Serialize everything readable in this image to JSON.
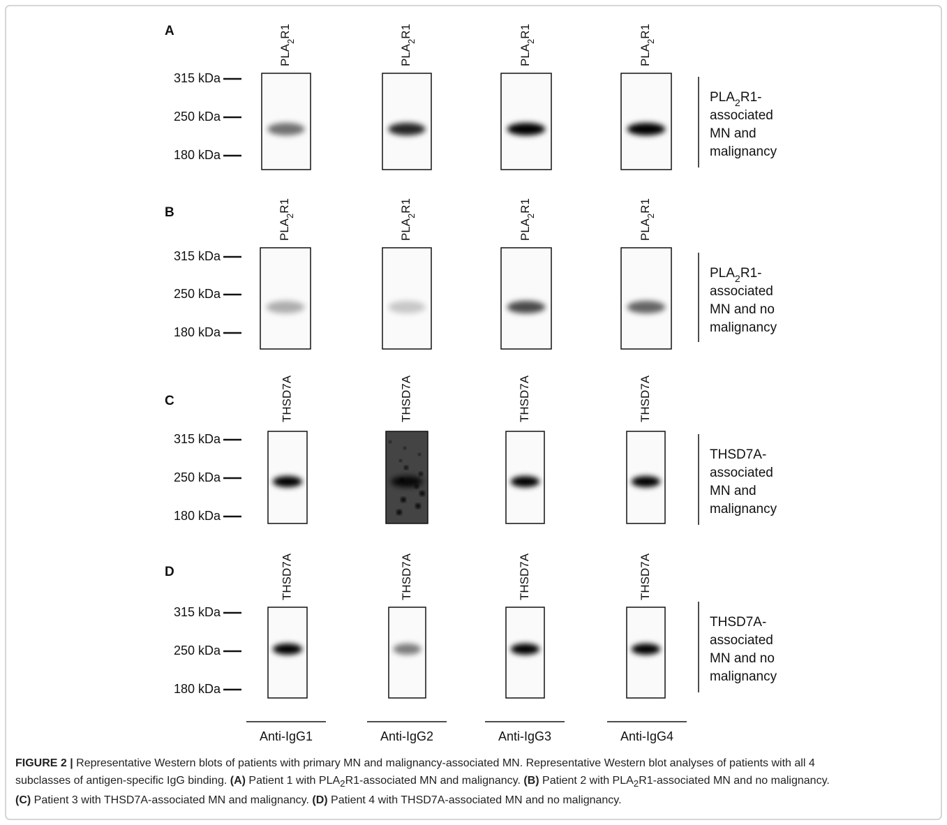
{
  "figure": {
    "panels": [
      {
        "letter": "A",
        "antigen": {
          "pre": "PLA",
          "sub": "2",
          "post": "R1"
        },
        "markers": [
          "315 kDa",
          "250 kDa",
          "180 kDa"
        ],
        "description": [
          {
            "pre": "PLA",
            "sub": "2",
            "post": "R1-"
          },
          "associated",
          "MN and",
          "malignancy"
        ]
      },
      {
        "letter": "B",
        "antigen": {
          "pre": "PLA",
          "sub": "2",
          "post": "R1"
        },
        "markers": [
          "315 kDa",
          "250 kDa",
          "180 kDa"
        ],
        "description": [
          {
            "pre": "PLA",
            "sub": "2",
            "post": "R1-"
          },
          "associated",
          "MN and no",
          "malignancy"
        ]
      },
      {
        "letter": "C",
        "antigen": "THSD7A",
        "markers": [
          "315 kDa",
          "250 kDa",
          "180 kDa"
        ],
        "description": [
          "THSD7A-",
          "associated",
          "MN and",
          "malignancy"
        ]
      },
      {
        "letter": "D",
        "antigen": "THSD7A",
        "markers": [
          "315 kDa",
          "250 kDa",
          "180 kDa"
        ],
        "description": [
          "THSD7A-",
          "associated",
          "MN and no",
          "malignancy"
        ]
      }
    ],
    "lanes": [
      "Anti-IgG1",
      "Anti-IgG2",
      "Anti-IgG3",
      "Anti-IgG4"
    ],
    "caption": [
      [
        {
          "text": "FIGURE 2 |",
          "style": "bold"
        },
        {
          "text": " Representative Western blots of patients with primary MN and malignancy-associated MN. Representative Western blot analyses of patients with all 4"
        }
      ],
      [
        {
          "text": "subclasses of antigen-specific IgG binding. "
        },
        {
          "text": "(A)",
          "style": "bold"
        },
        {
          "text": " Patient 1 with PLA"
        },
        {
          "text": "2",
          "style": "sub"
        },
        {
          "text": "R1-associated MN and malignancy. "
        },
        {
          "text": "(B)",
          "style": "bold"
        },
        {
          "text": " Patient 2 with PLA"
        },
        {
          "text": "2",
          "style": "sub"
        },
        {
          "text": "R1-associated MN and no malignancy."
        }
      ],
      [
        {
          "text": "(C)",
          "style": "bold"
        },
        {
          "text": " Patient 3 with THSD7A-associated MN and malignancy. "
        },
        {
          "text": "(D)",
          "style": "bold"
        },
        {
          "text": " Patient 4 with THSD7A-associated MN and no malignancy."
        }
      ]
    ]
  }
}
